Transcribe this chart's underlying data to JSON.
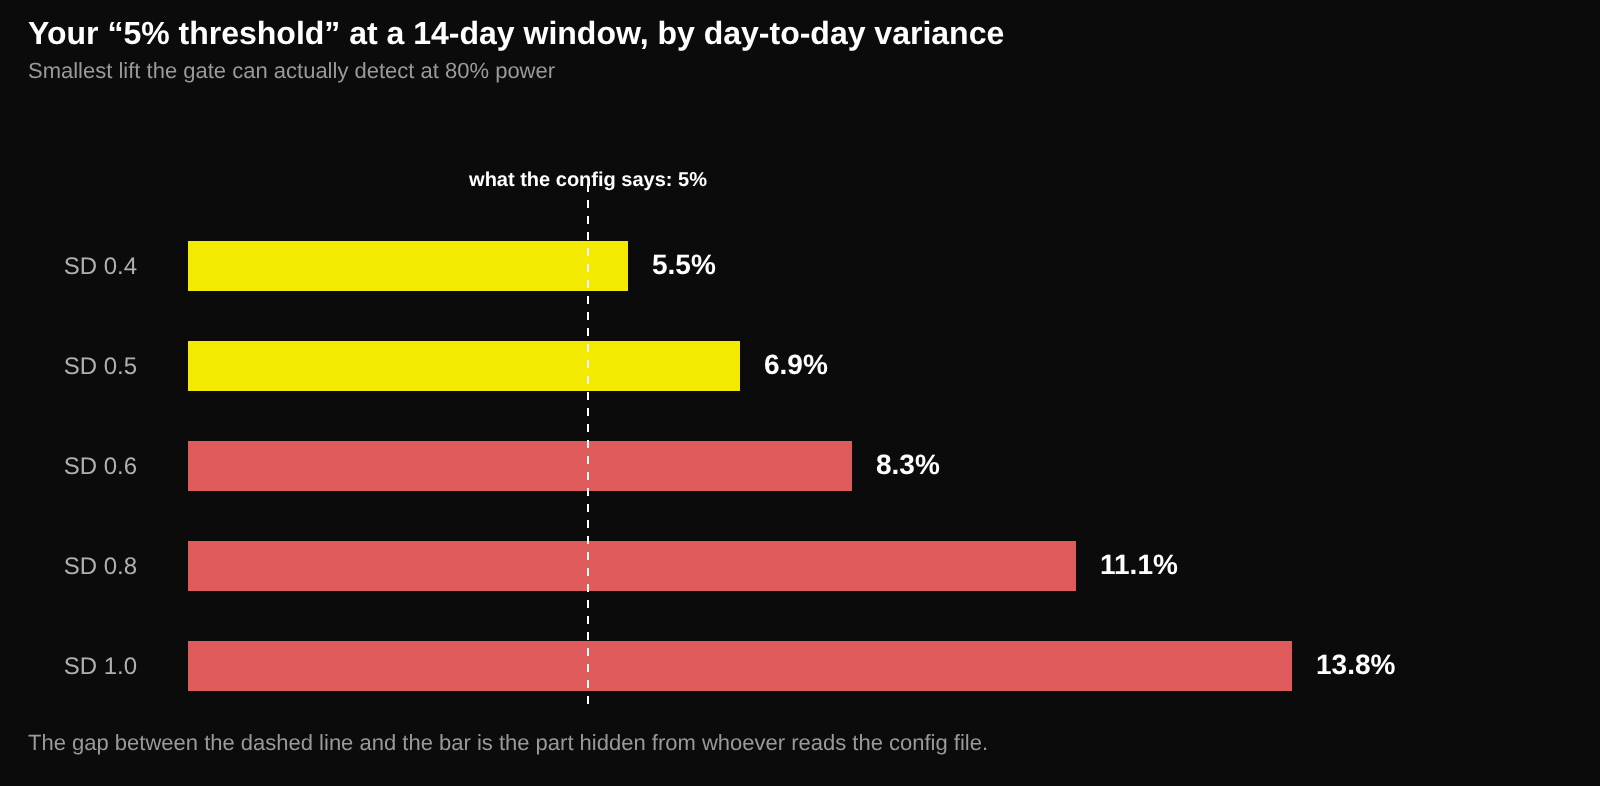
{
  "chart_data": {
    "type": "bar",
    "orientation": "horizontal",
    "title": "Your “5% threshold” at a 14-day window, by day-to-day variance",
    "subtitle": "Smallest lift the gate can actually detect at 80% power",
    "categories": [
      "SD 0.4",
      "SD 0.5",
      "SD 0.6",
      "SD 0.8",
      "SD 1.0"
    ],
    "values": [
      5.5,
      6.9,
      8.3,
      11.1,
      13.8
    ],
    "value_labels": [
      "5.5%",
      "6.9%",
      "8.3%",
      "11.1%",
      "13.8%"
    ],
    "colors": [
      "#f2ea00",
      "#f2ea00",
      "#e05c5c",
      "#e05c5c",
      "#e05c5c"
    ],
    "ref_lines": [
      {
        "axis": "x",
        "value": 5,
        "label": "what the config says: 5%",
        "color": "#ffffff",
        "line_style": "dashed"
      }
    ],
    "annotations": [
      "The gap between the dashed line and the bar is the part hidden from whoever reads the config file."
    ]
  }
}
